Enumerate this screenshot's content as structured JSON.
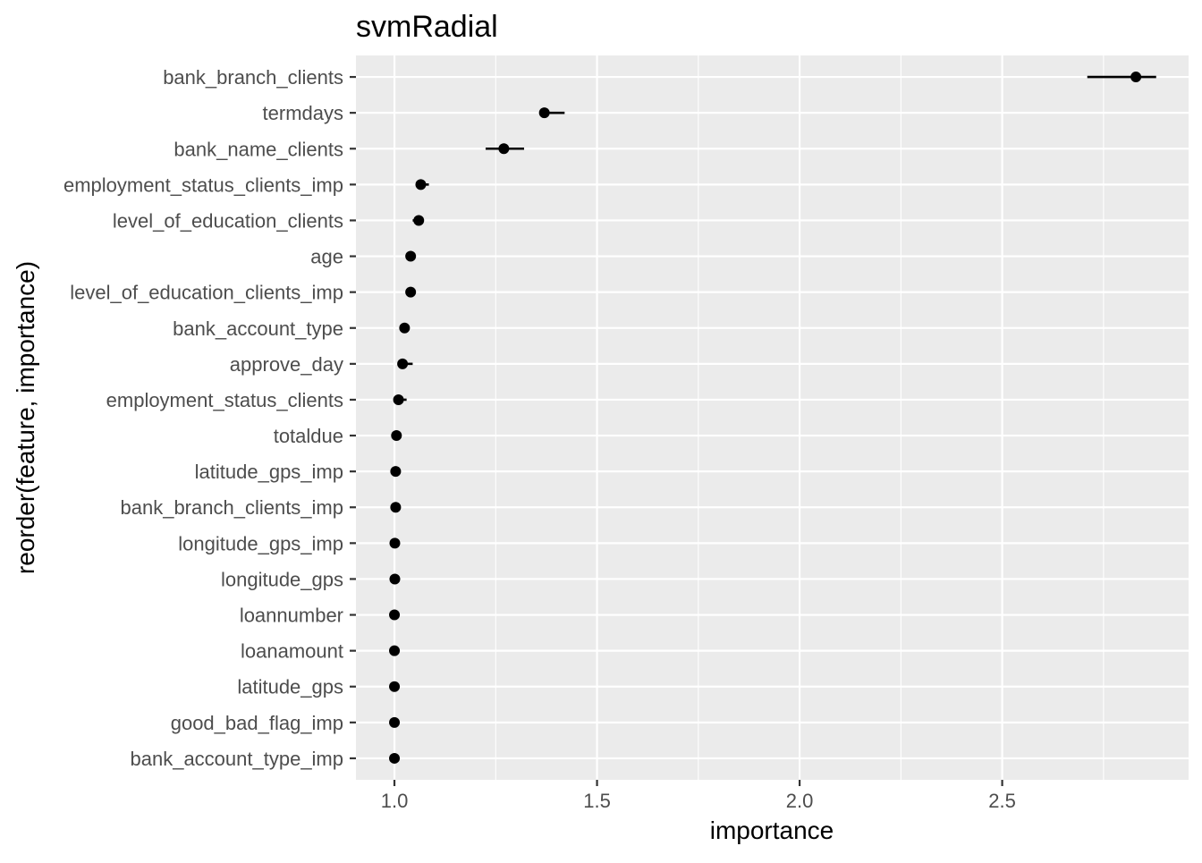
{
  "chart_data": {
    "type": "scatter",
    "title": "svmRadial",
    "xlabel": "importance",
    "ylabel": "reorder(feature, importance)",
    "xlim": [
      0.905,
      2.96
    ],
    "x_ticks": [
      1.0,
      1.5,
      2.0,
      2.5
    ],
    "x_tick_labels": [
      "1.0",
      "1.5",
      "2.0",
      "2.5"
    ],
    "grid": true,
    "background": "#ebebeb",
    "grid_color": "#ffffff",
    "point_color": "#000000",
    "features": [
      {
        "name": "bank_branch_clients",
        "importance": 2.83,
        "lower": 2.71,
        "upper": 2.88
      },
      {
        "name": "termdays",
        "importance": 1.37,
        "lower": 1.36,
        "upper": 1.42
      },
      {
        "name": "bank_name_clients",
        "importance": 1.27,
        "lower": 1.225,
        "upper": 1.32
      },
      {
        "name": "employment_status_clients_imp",
        "importance": 1.065,
        "lower": 1.055,
        "upper": 1.085
      },
      {
        "name": "level_of_education_clients",
        "importance": 1.06,
        "lower": 1.045,
        "upper": 1.07
      },
      {
        "name": "age",
        "importance": 1.04,
        "lower": 1.035,
        "upper": 1.05
      },
      {
        "name": "level_of_education_clients_imp",
        "importance": 1.04,
        "lower": 1.035,
        "upper": 1.045
      },
      {
        "name": "bank_account_type",
        "importance": 1.025,
        "lower": 1.02,
        "upper": 1.03
      },
      {
        "name": "approve_day",
        "importance": 1.02,
        "lower": 1.015,
        "upper": 1.045
      },
      {
        "name": "employment_status_clients",
        "importance": 1.01,
        "lower": 1.005,
        "upper": 1.03
      },
      {
        "name": "totaldue",
        "importance": 1.005,
        "lower": 1.003,
        "upper": 1.012
      },
      {
        "name": "latitude_gps_imp",
        "importance": 1.003,
        "lower": 1.0,
        "upper": 1.008
      },
      {
        "name": "bank_branch_clients_imp",
        "importance": 1.003,
        "lower": 1.0,
        "upper": 1.008
      },
      {
        "name": "longitude_gps_imp",
        "importance": 1.001,
        "lower": 1.0,
        "upper": 1.004
      },
      {
        "name": "longitude_gps",
        "importance": 1.001,
        "lower": 1.0,
        "upper": 1.003
      },
      {
        "name": "loannumber",
        "importance": 1.0,
        "lower": 1.0,
        "upper": 1.002
      },
      {
        "name": "loanamount",
        "importance": 1.0,
        "lower": 1.0,
        "upper": 1.002
      },
      {
        "name": "latitude_gps",
        "importance": 1.0,
        "lower": 1.0,
        "upper": 1.002
      },
      {
        "name": "good_bad_flag_imp",
        "importance": 1.0,
        "lower": 1.0,
        "upper": 1.002
      },
      {
        "name": "bank_account_type_imp",
        "importance": 1.0,
        "lower": 1.0,
        "upper": 1.002
      }
    ]
  }
}
